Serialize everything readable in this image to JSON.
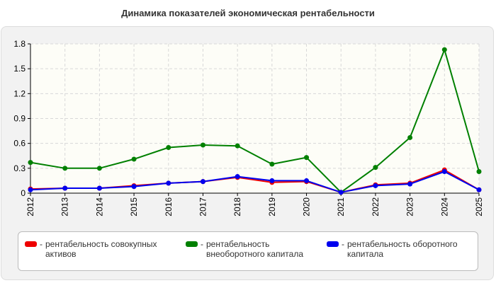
{
  "chart_data": {
    "type": "line",
    "title": "Динамика показателей экономическая рентабельности",
    "xlabel": "",
    "ylabel": "",
    "categories": [
      "2012",
      "2013",
      "2014",
      "2015",
      "2016",
      "2017",
      "2018",
      "2019",
      "2020",
      "2021",
      "2022",
      "2023",
      "2024",
      "2025"
    ],
    "ylim": [
      0,
      1.8
    ],
    "yticks": [
      "0",
      "0.3",
      "0.6",
      "0.9",
      "1.2",
      "1.5",
      "1.8"
    ],
    "grid": true,
    "legend_position": "bottom",
    "series": [
      {
        "name": "рентабельность совокупных активов",
        "color": "#ee0000",
        "values": [
          0.05,
          0.06,
          0.06,
          0.09,
          0.12,
          0.14,
          0.19,
          0.13,
          0.14,
          0.01,
          0.1,
          0.12,
          0.28,
          0.04
        ]
      },
      {
        "name": "рентабельность внеоборотного капитала",
        "color": "#008000",
        "values": [
          0.37,
          0.3,
          0.3,
          0.41,
          0.55,
          0.58,
          0.57,
          0.35,
          0.43,
          0.01,
          0.31,
          0.67,
          1.73,
          0.26
        ]
      },
      {
        "name": "рентабельность оборотного капитала",
        "color": "#0000ee",
        "values": [
          0.04,
          0.06,
          0.06,
          0.08,
          0.12,
          0.14,
          0.2,
          0.15,
          0.15,
          0.01,
          0.09,
          0.11,
          0.26,
          0.04
        ]
      }
    ]
  }
}
